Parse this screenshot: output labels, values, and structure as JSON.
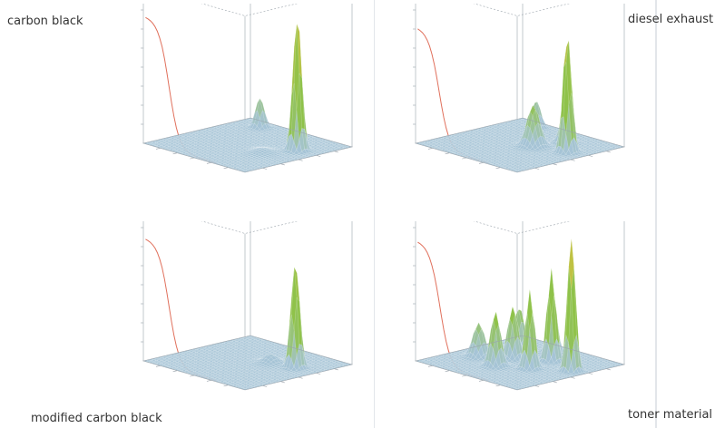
{
  "chart_data": [
    {
      "type": "surface",
      "label": "carbon black",
      "plateau": 0.93,
      "curve_drop": 0.55,
      "peaks": [
        {
          "u": 0.66,
          "v": 0.18,
          "h": 1.0,
          "w": 0.03
        },
        {
          "u": 0.88,
          "v": 0.78,
          "h": 0.22,
          "w": 0.03
        },
        {
          "u": 0.45,
          "v": 0.3,
          "h": 0.03,
          "w": 0.06
        }
      ]
    },
    {
      "type": "surface",
      "label": "diesel exhaust",
      "plateau": 0.85,
      "curve_drop": 0.5,
      "peaks": [
        {
          "u": 0.62,
          "v": 0.16,
          "h": 0.88,
          "w": 0.03
        },
        {
          "u": 0.55,
          "v": 0.42,
          "h": 0.3,
          "w": 0.045
        },
        {
          "u": 0.78,
          "v": 0.35,
          "h": 0.22,
          "w": 0.035
        },
        {
          "u": 0.9,
          "v": 0.76,
          "h": 0.2,
          "w": 0.03
        }
      ]
    },
    {
      "type": "surface",
      "label": "modified carbon black",
      "plateau": 0.9,
      "curve_drop": 0.55,
      "peaks": [
        {
          "u": 0.66,
          "v": 0.2,
          "h": 0.78,
          "w": 0.03
        },
        {
          "u": 0.62,
          "v": 0.4,
          "h": 0.06,
          "w": 0.05
        }
      ]
    },
    {
      "type": "surface",
      "label": "toner material",
      "plateau": 0.88,
      "curve_drop": 0.52,
      "peaks": [
        {
          "u": 0.62,
          "v": 0.12,
          "h": 1.0,
          "w": 0.028
        },
        {
          "u": 0.45,
          "v": 0.35,
          "h": 0.58,
          "w": 0.03
        },
        {
          "u": 0.7,
          "v": 0.4,
          "h": 0.68,
          "w": 0.03
        },
        {
          "u": 0.32,
          "v": 0.55,
          "h": 0.4,
          "w": 0.035
        },
        {
          "u": 0.85,
          "v": 0.55,
          "h": 0.45,
          "w": 0.03
        },
        {
          "u": 0.55,
          "v": 0.62,
          "h": 0.38,
          "w": 0.035
        },
        {
          "u": 0.76,
          "v": 0.78,
          "h": 0.3,
          "w": 0.035
        },
        {
          "u": 0.4,
          "v": 0.8,
          "h": 0.25,
          "w": 0.04
        }
      ]
    }
  ],
  "colors": {
    "base": "#a6c4d6",
    "mid": "#8fc24a",
    "peak": "#f0c23c",
    "curve": "#e0705c",
    "frame": "#9aa3ab"
  }
}
